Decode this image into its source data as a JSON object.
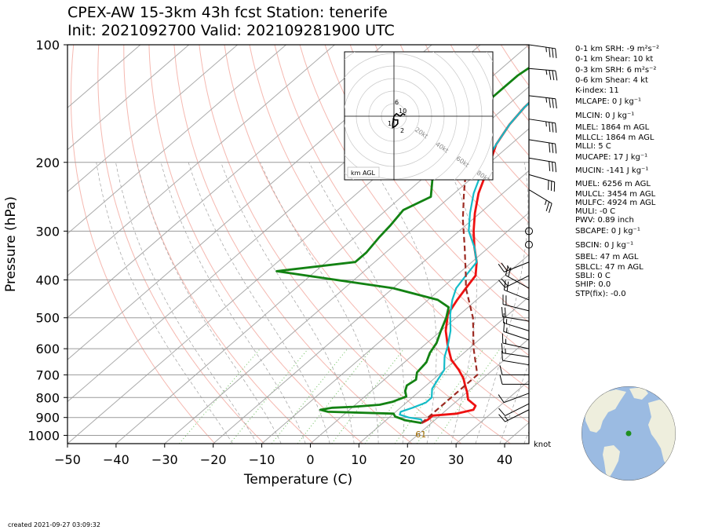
{
  "header": {
    "title_line1": "CPEX-AW 15-3km  43h fcst  Station: tenerife",
    "title_line2": "Init: 2021092700  Valid: 2021092819​00 UTC"
  },
  "footer": {
    "created": "created 2021-09-27 03:09:32"
  },
  "indices": [
    "0-1 km SRH: -9 m²s⁻²",
    "0-1 km Shear: 10 kt",
    "0-3 km SRH: 6 m²s⁻²",
    "0-6 km Shear: 4 kt",
    "K-index: 11",
    "MLCAPE: 0 J kg⁻¹",
    "MLCIN: 0 J kg⁻¹",
    "MLEL: 1864 m AGL",
    "MLLCL: 1864 m AGL",
    "MLLI: 5 C",
    "MUCAPE: 17 J kg⁻¹",
    "MUCIN: -141 J kg⁻¹",
    "MUEL: 6256 m AGL",
    "MULCL: 3454 m AGL",
    "MULFC: 4924 m AGL",
    "MULI: -0 C",
    "PWV: 0.89 inch",
    "SBCAPE: 0 J kg⁻¹",
    "SBCIN: 0 J kg⁻¹",
    "SBEL: 47 m AGL",
    "SBLCL: 47 m AGL",
    "SBLI: 0 C",
    "SHIP: 0.0",
    "STP(fix): -0.0"
  ],
  "chart_data": [
    {
      "type": "line",
      "subtype": "skew-T log-P diagram",
      "xlabel": "Temperature (C)",
      "ylabel": "Pressure (hPa)",
      "xlim": [
        -50,
        45
      ],
      "ylim": [
        1050,
        100
      ],
      "y_scale": "log",
      "x_ticks": [
        -50,
        -40,
        -30,
        -20,
        -10,
        0,
        10,
        20,
        30,
        40
      ],
      "x_tick_labels": [
        "−50",
        "−40",
        "−30",
        "−20",
        "−10",
        "0",
        "10",
        "20",
        "30",
        "40"
      ],
      "y_ticks": [
        100,
        200,
        300,
        400,
        500,
        600,
        700,
        800,
        900,
        1000
      ],
      "y_tick_labels": [
        "100",
        "200",
        "300",
        "400",
        "500",
        "600",
        "700",
        "800",
        "900",
        "1000"
      ],
      "grid": true,
      "surface_label": "61",
      "wind_unit_label": "knot",
      "colors": {
        "temperature": "#ee1111",
        "virtual_temperature": "#14bcc8",
        "dewpoint": "#138213",
        "parcel": "#9c2a22",
        "dry_adiabat": "#f5b8b0",
        "moist_adiabat": "#a0a0a0",
        "mixing_ratio": "#6cbf5c",
        "isotherm": "#aaaaaa",
        "isobar": "#9a9a9a"
      },
      "series": [
        {
          "key": "temperature",
          "points": [
            [
              18,
              930
            ],
            [
              18.5,
              910
            ],
            [
              18.5,
              890
            ],
            [
              23,
              880
            ],
            [
              25.5,
              860
            ],
            [
              25,
              840
            ],
            [
              22,
              810
            ],
            [
              20,
              775
            ],
            [
              18,
              745
            ],
            [
              16,
              715
            ],
            [
              13,
              680
            ],
            [
              9,
              640
            ],
            [
              5,
              590
            ],
            [
              1,
              540
            ],
            [
              -2.5,
              490
            ],
            [
              -4,
              450
            ],
            [
              -5,
              420
            ],
            [
              -6,
              390
            ],
            [
              -9,
              360
            ],
            [
              -13,
              330
            ],
            [
              -17,
              300
            ],
            [
              -21,
              270
            ],
            [
              -25,
              240
            ],
            [
              -28,
              215
            ],
            [
              -30,
              200
            ],
            [
              -33,
              180
            ],
            [
              -35,
              160
            ],
            [
              -36,
              145
            ],
            [
              -36.5,
              130
            ],
            [
              -37,
              120
            ],
            [
              -38,
              110
            ],
            [
              -39,
              100
            ]
          ]
        },
        {
          "key": "virtual_temperature",
          "points": [
            [
              18.3,
              930
            ],
            [
              17,
              910
            ],
            [
              14,
              900
            ],
            [
              11.5,
              885
            ],
            [
              11,
              870
            ],
            [
              12.5,
              850
            ],
            [
              14,
              825
            ],
            [
              14,
              800
            ],
            [
              12,
              760
            ],
            [
              11,
              720
            ],
            [
              10,
              680
            ],
            [
              7,
              630
            ],
            [
              5,
              590
            ],
            [
              2,
              540
            ],
            [
              -2,
              490
            ],
            [
              -5,
              450
            ],
            [
              -7,
              420
            ],
            [
              -8,
              390
            ],
            [
              -9,
              360
            ],
            [
              -13,
              330
            ],
            [
              -18,
              300
            ],
            [
              -22,
              270
            ],
            [
              -26,
              240
            ],
            [
              -29,
              215
            ],
            [
              -31,
              200
            ],
            [
              -33,
              180
            ],
            [
              -35,
              160
            ],
            [
              -36,
              145
            ],
            [
              -36.5,
              130
            ],
            [
              -37,
              120
            ],
            [
              -38,
              110
            ],
            [
              -39,
              100
            ]
          ]
        },
        {
          "key": "dewpoint",
          "points": [
            [
              18,
              930
            ],
            [
              14,
              915
            ],
            [
              11,
              895
            ],
            [
              10,
              880
            ],
            [
              -4,
              870
            ],
            [
              -6,
              860
            ],
            [
              -4,
              850
            ],
            [
              0,
              845
            ],
            [
              5,
              835
            ],
            [
              7,
              820
            ],
            [
              8.5,
              795
            ],
            [
              7,
              770
            ],
            [
              6,
              745
            ],
            [
              6.5,
              720
            ],
            [
              5,
              690
            ],
            [
              4.5,
              650
            ],
            [
              3,
              615
            ],
            [
              2,
              580
            ],
            [
              0,
              540
            ],
            [
              -2,
              500
            ],
            [
              -4,
              470
            ],
            [
              -8,
              450
            ],
            [
              -20,
              420
            ],
            [
              -48,
              380
            ],
            [
              -34,
              360
            ],
            [
              -34,
              340
            ],
            [
              -35,
              310
            ],
            [
              -35.5,
              290
            ],
            [
              -36.5,
              265
            ],
            [
              -34,
              245
            ],
            [
              -38,
              220
            ],
            [
              -40,
              200
            ],
            [
              -42,
              180
            ],
            [
              -44,
              160
            ],
            [
              -45,
              145
            ],
            [
              -45,
              130
            ],
            [
              -45,
              120
            ],
            [
              -44,
              110
            ],
            [
              -43,
              100
            ]
          ]
        },
        {
          "key": "parcel",
          "points": [
            [
              18,
              930
            ],
            [
              18,
              760
            ],
            [
              18,
              700
            ],
            [
              11,
              600
            ],
            [
              3.5,
              500
            ],
            [
              -5,
              420
            ],
            [
              -8,
              390
            ],
            [
              -15,
              330
            ],
            [
              -22,
              280
            ],
            [
              -28,
              240
            ],
            [
              -33,
              210
            ],
            [
              -38,
              180
            ],
            [
              -44,
              150
            ],
            [
              -50,
              125
            ],
            [
              -55,
              110
            ]
          ]
        }
      ],
      "wind_barbs": [
        {
          "p": 100,
          "u": 35,
          "v": -5
        },
        {
          "p": 115,
          "u": 34,
          "v": -3
        },
        {
          "p": 135,
          "u": 34,
          "v": -4
        },
        {
          "p": 155,
          "u": 33,
          "v": -5
        },
        {
          "p": 175,
          "u": 32,
          "v": -5
        },
        {
          "p": 195,
          "u": 30,
          "v": -5
        },
        {
          "p": 215,
          "u": 28,
          "v": -8
        },
        {
          "p": 235,
          "u": 20,
          "v": -12
        },
        {
          "p": 300,
          "calm": true
        },
        {
          "p": 325,
          "calm": true
        },
        {
          "p": 360,
          "u": -25,
          "v": -10
        },
        {
          "p": 390,
          "u": -20,
          "v": -10
        },
        {
          "p": 420,
          "u": -18,
          "v": 10
        },
        {
          "p": 450,
          "u": -20,
          "v": 8
        },
        {
          "p": 480,
          "u": -20,
          "v": 5
        },
        {
          "p": 510,
          "u": -18,
          "v": 3
        },
        {
          "p": 540,
          "u": -16,
          "v": 5
        },
        {
          "p": 570,
          "u": -15,
          "v": 5
        },
        {
          "p": 600,
          "u": -14,
          "v": 3
        },
        {
          "p": 630,
          "u": -13,
          "v": 2
        },
        {
          "p": 660,
          "u": -12,
          "v": 2
        },
        {
          "p": 700,
          "u": -12,
          "v": 0
        },
        {
          "p": 740,
          "u": -10,
          "v": 0
        },
        {
          "p": 780,
          "u": -8,
          "v": -3
        },
        {
          "p": 830,
          "u": -10,
          "v": -5
        },
        {
          "p": 860,
          "u": -12,
          "v": -6
        }
      ]
    },
    {
      "type": "line",
      "subtype": "hodograph",
      "label": "km AGL",
      "ring_labels": [
        "20kt",
        "40kt",
        "60kt",
        "80kt"
      ],
      "height_labels": [
        "10",
        "6",
        "1",
        "2"
      ],
      "points": [
        [
          -1,
          -2
        ],
        [
          1,
          -3
        ],
        [
          3,
          -3
        ],
        [
          3,
          -6
        ],
        [
          1,
          -8
        ],
        [
          -1,
          -9
        ],
        [
          -1,
          -6
        ],
        [
          0,
          0
        ],
        [
          2,
          2
        ],
        [
          5,
          0
        ],
        [
          7,
          2
        ],
        [
          9,
          1
        ]
      ]
    }
  ],
  "globe": {
    "ocean": "#9bbbe2",
    "land": "#eeeedd",
    "station_marker": "#1f8f1f"
  }
}
